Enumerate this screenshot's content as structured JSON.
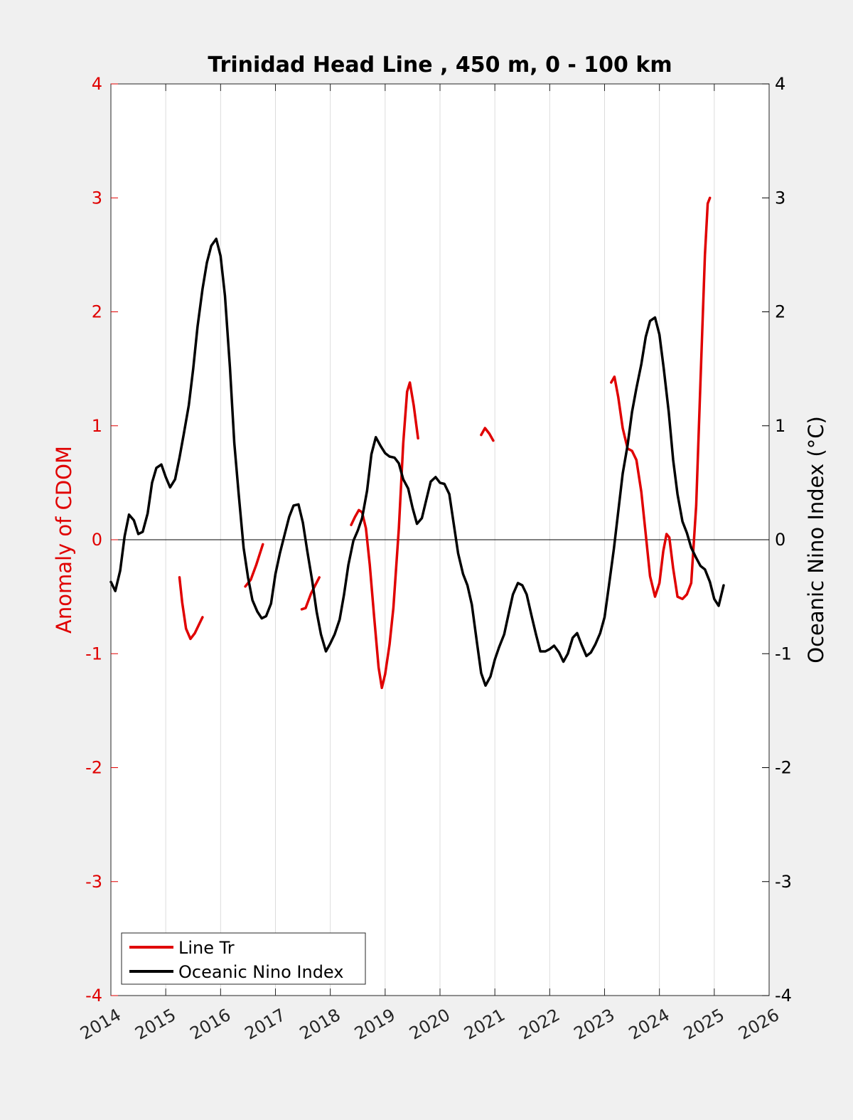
{
  "chart_data": {
    "type": "line",
    "title": "Trinidad Head Line , 450 m, 0 - 100 km",
    "ylabel_left": "Anomaly of CDOM",
    "ylabel_right": "Oceanic Nino Index (°C)",
    "xlabel": "",
    "x_ticks": [
      "2014",
      "2015",
      "2016",
      "2017",
      "2018",
      "2019",
      "2020",
      "2021",
      "2022",
      "2023",
      "2024",
      "2025",
      "2026"
    ],
    "y_ticks_left": [
      "4",
      "3",
      "2",
      "1",
      "0",
      "-1",
      "-2",
      "-3",
      "-4"
    ],
    "y_ticks_right": [
      "4",
      "3",
      "2",
      "1",
      "0",
      "-1",
      "-2",
      "-3",
      "-4"
    ],
    "xlim": [
      2014,
      2026
    ],
    "ylim": [
      -4,
      4
    ],
    "grid": "vertical",
    "legend_position": "bottom-left",
    "colors": {
      "line_tr": "#e00000",
      "oni": "#000000",
      "left_axis": "#e00000",
      "right_axis": "#000000"
    },
    "series": [
      {
        "name": "Line Tr",
        "axis": "left",
        "segments": [
          [
            [
              2015.25,
              -0.33
            ],
            [
              2015.3,
              -0.55
            ],
            [
              2015.37,
              -0.78
            ],
            [
              2015.45,
              -0.87
            ],
            [
              2015.53,
              -0.82
            ],
            [
              2015.62,
              -0.73
            ],
            [
              2015.67,
              -0.68
            ]
          ],
          [
            [
              2016.45,
              -0.41
            ],
            [
              2016.55,
              -0.35
            ],
            [
              2016.65,
              -0.22
            ],
            [
              2016.77,
              -0.04
            ]
          ],
          [
            [
              2017.48,
              -0.61
            ],
            [
              2017.55,
              -0.6
            ],
            [
              2017.65,
              -0.47
            ],
            [
              2017.8,
              -0.33
            ]
          ],
          [
            [
              2018.38,
              0.13
            ],
            [
              2018.45,
              0.2
            ],
            [
              2018.52,
              0.26
            ],
            [
              2018.58,
              0.24
            ],
            [
              2018.65,
              0.1
            ],
            [
              2018.72,
              -0.22
            ],
            [
              2018.8,
              -0.68
            ],
            [
              2018.88,
              -1.12
            ],
            [
              2018.94,
              -1.3
            ],
            [
              2019.0,
              -1.18
            ],
            [
              2019.08,
              -0.92
            ],
            [
              2019.15,
              -0.6
            ],
            [
              2019.25,
              0.1
            ],
            [
              2019.33,
              0.85
            ],
            [
              2019.4,
              1.3
            ],
            [
              2019.45,
              1.38
            ],
            [
              2019.52,
              1.18
            ],
            [
              2019.6,
              0.89
            ]
          ],
          [
            [
              2020.75,
              0.92
            ],
            [
              2020.82,
              0.98
            ],
            [
              2020.9,
              0.93
            ],
            [
              2020.97,
              0.87
            ]
          ],
          [
            [
              2023.12,
              1.38
            ],
            [
              2023.18,
              1.43
            ],
            [
              2023.25,
              1.25
            ],
            [
              2023.33,
              0.98
            ],
            [
              2023.42,
              0.8
            ],
            [
              2023.5,
              0.78
            ],
            [
              2023.58,
              0.7
            ],
            [
              2023.67,
              0.42
            ],
            [
              2023.75,
              0.05
            ],
            [
              2023.83,
              -0.32
            ],
            [
              2023.92,
              -0.5
            ],
            [
              2024.0,
              -0.38
            ],
            [
              2024.07,
              -0.1
            ],
            [
              2024.13,
              0.05
            ],
            [
              2024.18,
              0.02
            ],
            [
              2024.25,
              -0.25
            ],
            [
              2024.33,
              -0.5
            ],
            [
              2024.42,
              -0.52
            ],
            [
              2024.5,
              -0.48
            ],
            [
              2024.58,
              -0.38
            ],
            [
              2024.67,
              0.3
            ],
            [
              2024.75,
              1.4
            ],
            [
              2024.83,
              2.5
            ],
            [
              2024.88,
              2.95
            ],
            [
              2024.92,
              3.0
            ]
          ]
        ]
      },
      {
        "name": "Oceanic Nino Index",
        "axis": "right",
        "x": [
          2014.0,
          2014.08,
          2014.17,
          2014.25,
          2014.33,
          2014.42,
          2014.5,
          2014.58,
          2014.67,
          2014.75,
          2014.83,
          2014.92,
          2015.0,
          2015.08,
          2015.17,
          2015.25,
          2015.33,
          2015.42,
          2015.5,
          2015.58,
          2015.67,
          2015.75,
          2015.83,
          2015.92,
          2016.0,
          2016.08,
          2016.17,
          2016.25,
          2016.33,
          2016.42,
          2016.5,
          2016.58,
          2016.67,
          2016.75,
          2016.83,
          2016.92,
          2017.0,
          2017.08,
          2017.17,
          2017.25,
          2017.33,
          2017.42,
          2017.5,
          2017.58,
          2017.67,
          2017.75,
          2017.83,
          2017.92,
          2018.0,
          2018.08,
          2018.17,
          2018.25,
          2018.33,
          2018.42,
          2018.5,
          2018.58,
          2018.67,
          2018.75,
          2018.83,
          2018.92,
          2019.0,
          2019.08,
          2019.17,
          2019.25,
          2019.33,
          2019.42,
          2019.5,
          2019.58,
          2019.67,
          2019.75,
          2019.83,
          2019.92,
          2020.0,
          2020.08,
          2020.17,
          2020.25,
          2020.33,
          2020.42,
          2020.5,
          2020.58,
          2020.67,
          2020.75,
          2020.83,
          2020.92,
          2021.0,
          2021.08,
          2021.17,
          2021.25,
          2021.33,
          2021.42,
          2021.5,
          2021.58,
          2021.67,
          2021.75,
          2021.83,
          2021.92,
          2022.0,
          2022.08,
          2022.17,
          2022.25,
          2022.33,
          2022.42,
          2022.5,
          2022.58,
          2022.67,
          2022.75,
          2022.83,
          2022.92,
          2023.0,
          2023.08,
          2023.17,
          2023.25,
          2023.33,
          2023.42,
          2023.5,
          2023.58,
          2023.67,
          2023.75,
          2023.83,
          2023.92,
          2024.0,
          2024.08,
          2024.17,
          2024.25,
          2024.33,
          2024.42,
          2024.5,
          2024.58,
          2024.67,
          2024.75,
          2024.83,
          2024.92,
          2025.0,
          2025.08,
          2025.17
        ],
        "values": [
          -0.37,
          -0.45,
          -0.27,
          0.03,
          0.22,
          0.17,
          0.05,
          0.07,
          0.23,
          0.5,
          0.63,
          0.66,
          0.55,
          0.46,
          0.53,
          0.72,
          0.93,
          1.18,
          1.5,
          1.87,
          2.2,
          2.43,
          2.58,
          2.64,
          2.49,
          2.14,
          1.51,
          0.85,
          0.4,
          -0.07,
          -0.33,
          -0.53,
          -0.63,
          -0.69,
          -0.67,
          -0.56,
          -0.3,
          -0.12,
          0.05,
          0.2,
          0.3,
          0.31,
          0.15,
          -0.1,
          -0.36,
          -0.63,
          -0.83,
          -0.98,
          -0.91,
          -0.83,
          -0.7,
          -0.48,
          -0.22,
          -0.01,
          0.08,
          0.19,
          0.43,
          0.75,
          0.9,
          0.82,
          0.76,
          0.73,
          0.72,
          0.67,
          0.53,
          0.45,
          0.28,
          0.14,
          0.19,
          0.35,
          0.51,
          0.55,
          0.5,
          0.49,
          0.4,
          0.14,
          -0.12,
          -0.3,
          -0.4,
          -0.57,
          -0.89,
          -1.17,
          -1.28,
          -1.2,
          -1.05,
          -0.94,
          -0.83,
          -0.65,
          -0.48,
          -0.38,
          -0.4,
          -0.48,
          -0.67,
          -0.83,
          -0.98,
          -0.98,
          -0.96,
          -0.93,
          -0.99,
          -1.07,
          -1.0,
          -0.86,
          -0.82,
          -0.92,
          -1.02,
          -0.99,
          -0.92,
          -0.82,
          -0.68,
          -0.4,
          -0.08,
          0.25,
          0.58,
          0.83,
          1.12,
          1.33,
          1.54,
          1.78,
          1.92,
          1.95,
          1.8,
          1.5,
          1.12,
          0.7,
          0.4,
          0.16,
          0.06,
          -0.07,
          -0.16,
          -0.23,
          -0.26,
          -0.37,
          -0.52,
          -0.58,
          -0.4
        ]
      }
    ]
  }
}
